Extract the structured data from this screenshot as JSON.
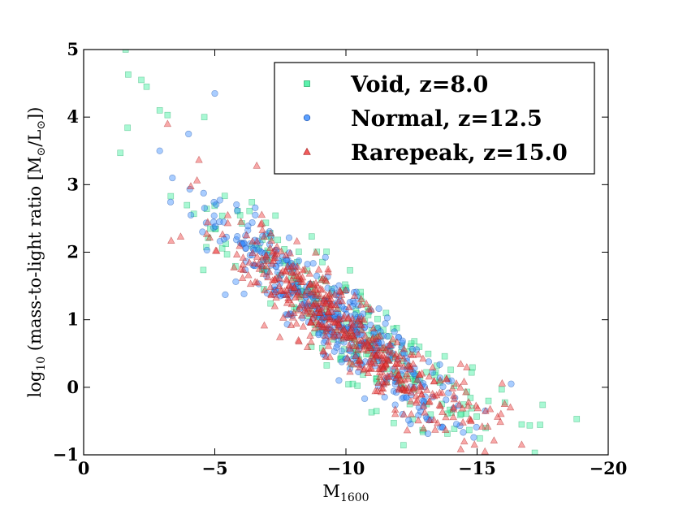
{
  "chart_data": {
    "type": "scatter",
    "title": "",
    "xlabel": "M",
    "xlabel_sub": "1600",
    "ylabel_parts": {
      "log": "log",
      "log_sub": "10",
      "main": " (mass-to-light ratio [M",
      "sun1": "⊙",
      "mid": "/L",
      "sun2": "⊙",
      "end": "])"
    },
    "xlim": [
      0,
      -20
    ],
    "ylim": [
      -1,
      5
    ],
    "xticks": [
      0,
      -5,
      -10,
      -15,
      -20
    ],
    "xtick_labels": [
      "0",
      "−5",
      "−10",
      "−15",
      "−20"
    ],
    "yticks": [
      -1,
      0,
      1,
      2,
      3,
      4,
      5
    ],
    "ytick_labels": [
      "−1",
      "0",
      "1",
      "2",
      "3",
      "4",
      "5"
    ],
    "grid": false,
    "legend_position": "top-right",
    "series": [
      {
        "name": "Void, z=8.0",
        "marker": "square",
        "color": "#33ee99",
        "edge": "#22aa66",
        "trend": {
          "x_range": [
            -1.5,
            -18.8
          ],
          "slope": -0.3,
          "intercept": 3.9,
          "spread": 0.38
        },
        "count": 260,
        "anchors": [
          [
            -1.6,
            5.0
          ],
          [
            -1.7,
            4.63
          ],
          [
            -2.2,
            4.55
          ],
          [
            -2.4,
            4.45
          ],
          [
            -1.4,
            3.47
          ],
          [
            -17.2,
            -0.97
          ],
          [
            -18.8,
            -0.47
          ],
          [
            -16.7,
            -0.55
          ],
          [
            -17.5,
            -0.26
          ],
          [
            -4.6,
            4.0
          ],
          [
            -3.2,
            4.03
          ],
          [
            -2.9,
            4.1
          ]
        ]
      },
      {
        "name": "Normal, z=12.5",
        "marker": "circle",
        "color": "#3388ff",
        "edge": "#2255aa",
        "trend": {
          "x_range": [
            -2.5,
            -16.5
          ],
          "slope": -0.3,
          "intercept": 3.9,
          "spread": 0.32
        },
        "count": 420,
        "anchors": [
          [
            -5.0,
            4.35
          ],
          [
            -4.0,
            3.75
          ],
          [
            -16.3,
            0.05
          ],
          [
            -2.9,
            3.5
          ],
          [
            -5.4,
            1.37
          ],
          [
            -4.7,
            2.03
          ],
          [
            -12.3,
            -0.15
          ]
        ]
      },
      {
        "name": "Rarepeak, z=15.0",
        "marker": "triangle",
        "color": "#ee3333",
        "edge": "#aa2222",
        "trend": {
          "x_range": [
            -3.0,
            -17.5
          ],
          "slope": -0.3,
          "intercept": 3.85,
          "spread": 0.3
        },
        "count": 520,
        "anchors": [
          [
            -15.3,
            -0.95
          ],
          [
            -14.9,
            -0.85
          ],
          [
            -16.7,
            -0.85
          ],
          [
            -3.2,
            3.9
          ],
          [
            -6.0,
            1.75
          ],
          [
            -6.6,
            3.28
          ]
        ]
      }
    ]
  }
}
